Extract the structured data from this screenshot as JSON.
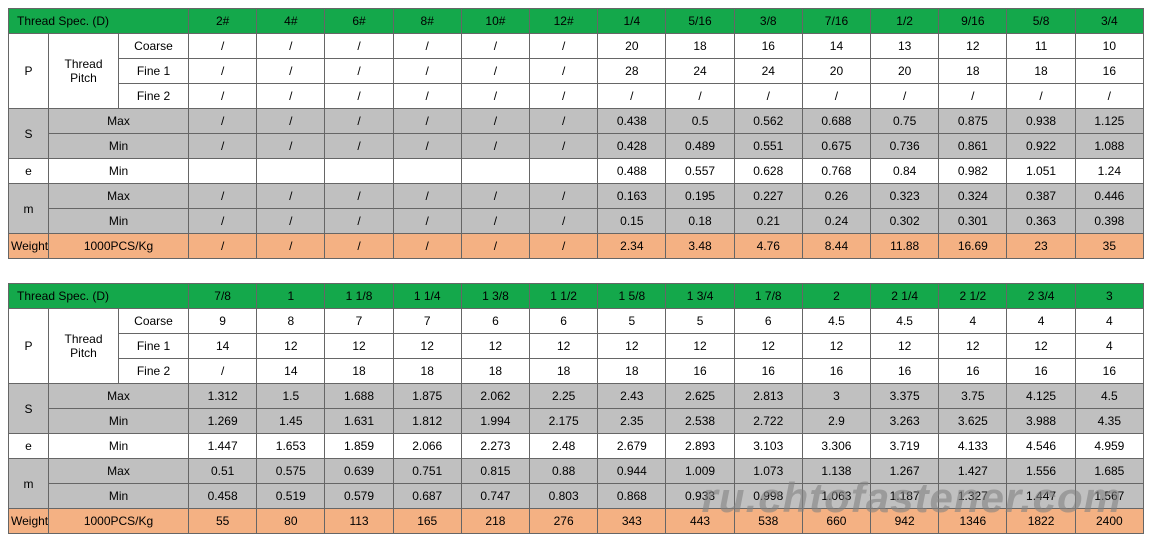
{
  "colors": {
    "header_bg": "#14a84b",
    "row_white": "#ffffff",
    "row_gray": "#c0c0c0",
    "row_peach": "#f4b183",
    "border": "#666666"
  },
  "labels": {
    "thread_spec": "Thread Spec. (D)",
    "P": "P",
    "thread_pitch": "Thread Pitch",
    "coarse": "Coarse",
    "fine1": "Fine 1",
    "fine2": "Fine 2",
    "S": "S",
    "e": "e",
    "m": "m",
    "max": "Max",
    "min": "Min",
    "weight": "Weight",
    "pcs": "1000PCS/Kg"
  },
  "table1": {
    "sizes": [
      "2#",
      "4#",
      "6#",
      "8#",
      "10#",
      "12#",
      "1/4",
      "5/16",
      "3/8",
      "7/16",
      "1/2",
      "9/16",
      "5/8",
      "3/4"
    ],
    "coarse": [
      "/",
      "/",
      "/",
      "/",
      "/",
      "/",
      "20",
      "18",
      "16",
      "14",
      "13",
      "12",
      "11",
      "10"
    ],
    "fine1": [
      "/",
      "/",
      "/",
      "/",
      "/",
      "/",
      "28",
      "24",
      "24",
      "20",
      "20",
      "18",
      "18",
      "16"
    ],
    "fine2": [
      "/",
      "/",
      "/",
      "/",
      "/",
      "/",
      "/",
      "/",
      "/",
      "/",
      "/",
      "/",
      "/",
      "/"
    ],
    "s_max": [
      "/",
      "/",
      "/",
      "/",
      "/",
      "/",
      "0.438",
      "0.5",
      "0.562",
      "0.688",
      "0.75",
      "0.875",
      "0.938",
      "1.125"
    ],
    "s_min": [
      "/",
      "/",
      "/",
      "/",
      "/",
      "/",
      "0.428",
      "0.489",
      "0.551",
      "0.675",
      "0.736",
      "0.861",
      "0.922",
      "1.088"
    ],
    "e_min": [
      "",
      "",
      "",
      "",
      "",
      "",
      "0.488",
      "0.557",
      "0.628",
      "0.768",
      "0.84",
      "0.982",
      "1.051",
      "1.24"
    ],
    "m_max": [
      "/",
      "/",
      "/",
      "/",
      "/",
      "/",
      "0.163",
      "0.195",
      "0.227",
      "0.26",
      "0.323",
      "0.324",
      "0.387",
      "0.446"
    ],
    "m_min": [
      "/",
      "/",
      "/",
      "/",
      "/",
      "/",
      "0.15",
      "0.18",
      "0.21",
      "0.24",
      "0.302",
      "0.301",
      "0.363",
      "0.398"
    ],
    "weight": [
      "/",
      "/",
      "/",
      "/",
      "/",
      "/",
      "2.34",
      "3.48",
      "4.76",
      "8.44",
      "11.88",
      "16.69",
      "23",
      "35"
    ]
  },
  "table2": {
    "sizes": [
      "7/8",
      "1",
      "1 1/8",
      "1 1/4",
      "1 3/8",
      "1 1/2",
      "1 5/8",
      "1 3/4",
      "1 7/8",
      "2",
      "2 1/4",
      "2 1/2",
      "2 3/4",
      "3"
    ],
    "coarse": [
      "9",
      "8",
      "7",
      "7",
      "6",
      "6",
      "5",
      "5",
      "6",
      "4.5",
      "4.5",
      "4",
      "4",
      "4"
    ],
    "fine1": [
      "14",
      "12",
      "12",
      "12",
      "12",
      "12",
      "12",
      "12",
      "12",
      "12",
      "12",
      "12",
      "12",
      "4"
    ],
    "fine2": [
      "/",
      "14",
      "18",
      "18",
      "18",
      "18",
      "18",
      "16",
      "16",
      "16",
      "16",
      "16",
      "16",
      "16"
    ],
    "s_max": [
      "1.312",
      "1.5",
      "1.688",
      "1.875",
      "2.062",
      "2.25",
      "2.43",
      "2.625",
      "2.813",
      "3",
      "3.375",
      "3.75",
      "4.125",
      "4.5"
    ],
    "s_min": [
      "1.269",
      "1.45",
      "1.631",
      "1.812",
      "1.994",
      "2.175",
      "2.35",
      "2.538",
      "2.722",
      "2.9",
      "3.263",
      "3.625",
      "3.988",
      "4.35"
    ],
    "e_min": [
      "1.447",
      "1.653",
      "1.859",
      "2.066",
      "2.273",
      "2.48",
      "2.679",
      "2.893",
      "3.103",
      "3.306",
      "3.719",
      "4.133",
      "4.546",
      "4.959"
    ],
    "m_max": [
      "0.51",
      "0.575",
      "0.639",
      "0.751",
      "0.815",
      "0.88",
      "0.944",
      "1.009",
      "1.073",
      "1.138",
      "1.267",
      "1.427",
      "1.556",
      "1.685"
    ],
    "m_min": [
      "0.458",
      "0.519",
      "0.579",
      "0.687",
      "0.747",
      "0.803",
      "0.868",
      "0.933",
      "0.998",
      "1.063",
      "1.187",
      "1.327",
      "1.447",
      "1.567"
    ],
    "weight": [
      "55",
      "80",
      "113",
      "165",
      "218",
      "276",
      "343",
      "443",
      "538",
      "660",
      "942",
      "1346",
      "1822",
      "2400"
    ]
  },
  "watermark": "ru.chtofastener.com"
}
